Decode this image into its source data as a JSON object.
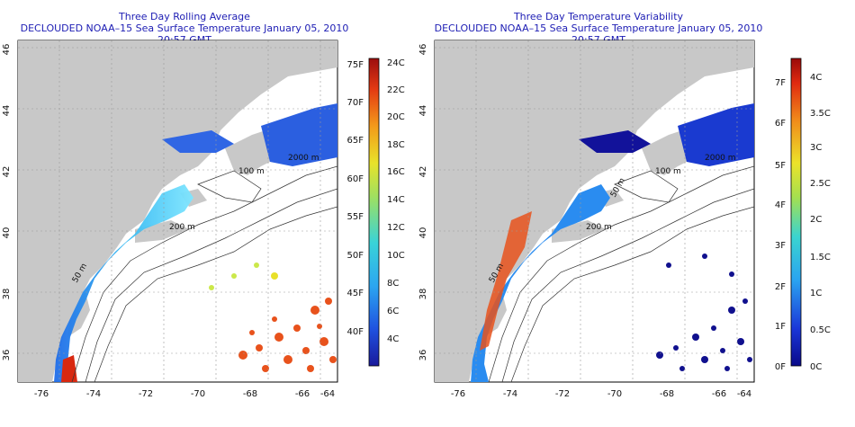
{
  "panels": [
    {
      "title": "Three Day Rolling Average",
      "subtitle": "DECLOUDED NOAA–15 Sea Surface Temperature January 05, 2010 20:57 GMT",
      "colorbar": {
        "celsius_labels": [
          "24C",
          "22C",
          "20C",
          "18C",
          "16C",
          "14C",
          "12C",
          "10C",
          "8C",
          "6C",
          "4C"
        ],
        "fahrenheit_labels": [
          "75F",
          "70F",
          "65F",
          "60F",
          "55F",
          "50F",
          "45F",
          "40F"
        ]
      }
    },
    {
      "title": "Three Day Temperature Variability",
      "subtitle": "DECLOUDED NOAA–15 Sea Surface Temperature January 05, 2010 20:57 GMT",
      "colorbar": {
        "celsius_labels": [
          "4C",
          "3.5C",
          "3C",
          "2.5C",
          "2C",
          "1.5C",
          "1C",
          "0.5C",
          "0C"
        ],
        "fahrenheit_labels": [
          "7F",
          "6F",
          "5F",
          "4F",
          "3F",
          "2F",
          "1F",
          "0F"
        ]
      }
    }
  ],
  "axes": {
    "longitude_ticks": [
      "-76",
      "-74",
      "-72",
      "-70",
      "-68",
      "-66",
      "-64"
    ],
    "latitude_ticks": [
      "36",
      "38",
      "40",
      "42",
      "44",
      "46"
    ]
  },
  "contour_labels": [
    "50 m",
    "100 m",
    "200 m",
    "2000 m",
    "50 m",
    "50 m"
  ],
  "colors": {
    "title": "#1d1db4",
    "land": "#c8c8c8",
    "grid": "#9a9a9a"
  }
}
